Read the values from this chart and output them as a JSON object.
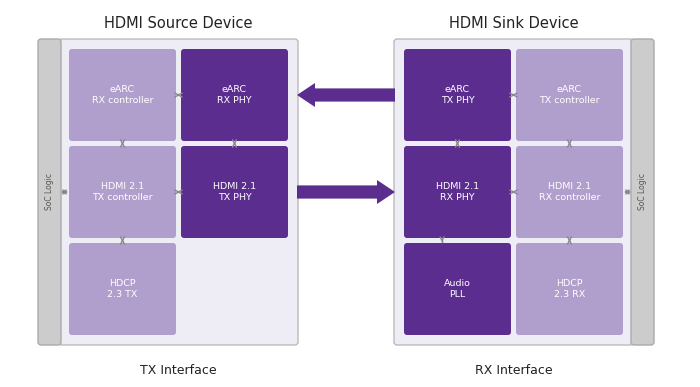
{
  "bg_color": "#ffffff",
  "title_left": "HDMI Source Device",
  "title_right": "HDMI Sink Device",
  "label_left": "TX Interface",
  "label_right": "RX Interface",
  "soc_label": "SoC Logic",
  "dark_purple": "#5b2d8e",
  "light_purple": "#b09ecc",
  "arrow_color": "#5b2d8e",
  "outer_bg": "#eeecf5",
  "soc_bg": "#cccccc",
  "blocks_left": [
    {
      "label": "eARC\nRX controller",
      "dark": false,
      "col": 0,
      "row": 0
    },
    {
      "label": "eARC\nRX PHY",
      "dark": true,
      "col": 1,
      "row": 0
    },
    {
      "label": "HDMI 2.1\nTX controller",
      "dark": false,
      "col": 0,
      "row": 1
    },
    {
      "label": "HDMI 2.1\nTX PHY",
      "dark": true,
      "col": 1,
      "row": 1
    },
    {
      "label": "HDCP\n2.3 TX",
      "dark": false,
      "col": 0,
      "row": 2
    }
  ],
  "blocks_right": [
    {
      "label": "eARC\nTX PHY",
      "dark": true,
      "col": 0,
      "row": 0
    },
    {
      "label": "eARC\nTX controller",
      "dark": false,
      "col": 1,
      "row": 0
    },
    {
      "label": "HDMI 2.1\nRX PHY",
      "dark": true,
      "col": 0,
      "row": 1
    },
    {
      "label": "HDMI 2.1\nRX controller",
      "dark": false,
      "col": 1,
      "row": 1
    },
    {
      "label": "Audio\nPLL",
      "dark": true,
      "col": 0,
      "row": 2
    },
    {
      "label": "HDCP\n2.3 RX",
      "dark": false,
      "col": 1,
      "row": 2
    }
  ]
}
